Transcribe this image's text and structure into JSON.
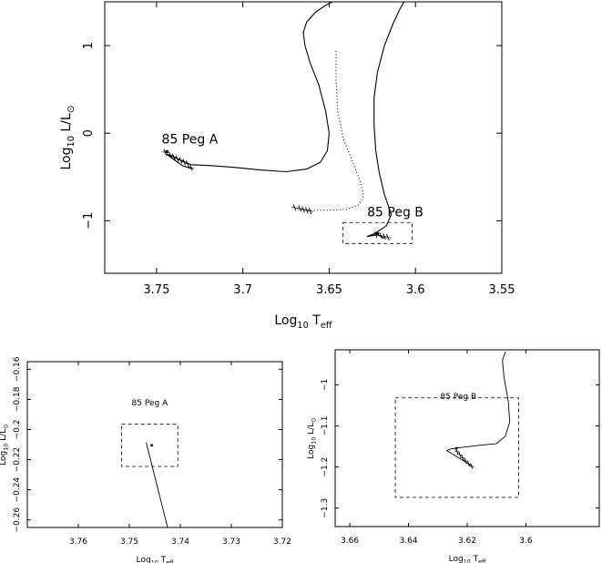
{
  "chart_data": [
    {
      "type": "line",
      "title": "",
      "xlabel_main": "Log",
      "xlabel_sub": "10",
      "xlabel_tail": " T",
      "xlabel_tail_sub": "eff",
      "ylabel_main": "Log",
      "ylabel_sub": "10",
      "ylabel_tail": " L/L",
      "ylabel_sun": "⊙",
      "x_axis": "reversed",
      "xlim": [
        3.78,
        3.55
      ],
      "ylim": [
        -1.6,
        1.5
      ],
      "xticks": [
        3.75,
        3.7,
        3.65,
        3.6,
        3.55
      ],
      "xtick_labels": [
        "3.75",
        "3.7",
        "3.65",
        "3.6",
        "3.55"
      ],
      "yticks": [
        1,
        0,
        -1
      ],
      "ytick_labels": [
        "1",
        "0",
        "−1"
      ],
      "annotations": [
        {
          "text": "85 Peg A",
          "x": 3.747,
          "y": -0.12
        },
        {
          "text": "85 Peg B",
          "x": 3.628,
          "y": -0.95
        }
      ],
      "series": [
        {
          "style": "solid",
          "x": [
            3.729,
            3.735,
            3.74,
            3.744,
            3.73,
            3.718,
            3.705,
            3.69,
            3.675,
            3.663,
            3.655,
            3.651,
            3.65,
            3.652,
            3.656,
            3.661,
            3.664,
            3.665,
            3.663,
            3.658,
            3.652,
            3.646
          ],
          "y": [
            -0.41,
            -0.37,
            -0.3,
            -0.24,
            -0.36,
            -0.37,
            -0.39,
            -0.42,
            -0.44,
            -0.41,
            -0.33,
            -0.2,
            0.0,
            0.25,
            0.55,
            0.8,
            1.0,
            1.15,
            1.27,
            1.38,
            1.46,
            1.52
          ]
        },
        {
          "style": "dotted",
          "x": [
            3.668,
            3.66,
            3.65,
            3.64,
            3.633,
            3.63,
            3.632,
            3.637,
            3.642,
            3.645,
            3.646,
            3.646
          ],
          "y": [
            -0.87,
            -0.88,
            -0.88,
            -0.87,
            -0.82,
            -0.72,
            -0.55,
            -0.3,
            -0.05,
            0.25,
            0.6,
            0.95
          ]
        },
        {
          "style": "solid",
          "x": [
            3.618,
            3.622,
            3.628,
            3.624,
            3.617,
            3.614,
            3.618,
            3.621,
            3.623,
            3.624,
            3.624,
            3.622,
            3.618,
            3.613,
            3.609,
            3.606
          ],
          "y": [
            -1.2,
            -1.16,
            -1.18,
            -1.15,
            -1.06,
            -0.93,
            -0.7,
            -0.45,
            -0.2,
            0.1,
            0.4,
            0.7,
            1.0,
            1.25,
            1.42,
            1.52
          ]
        }
      ],
      "hatch_clusters": [
        {
          "x": [
            3.745,
            3.742,
            3.74,
            3.738,
            3.736,
            3.734,
            3.732,
            3.73
          ],
          "y": [
            -0.22,
            -0.25,
            -0.27,
            -0.29,
            -0.31,
            -0.33,
            -0.35,
            -0.39
          ]
        },
        {
          "x": [
            3.67,
            3.667,
            3.665,
            3.663,
            3.661
          ],
          "y": [
            -0.85,
            -0.86,
            -0.87,
            -0.88,
            -0.89
          ]
        },
        {
          "x": [
            3.623,
            3.62,
            3.618,
            3.616
          ],
          "y": [
            -1.16,
            -1.17,
            -1.18,
            -1.19
          ]
        }
      ],
      "star_points": [
        {
          "name": "85 Peg A",
          "x": 3.744,
          "y": -0.21
        },
        {
          "name": "85 Peg B",
          "x": 3.622,
          "y": -1.15
        }
      ],
      "boxes": [
        {
          "style": "dashed",
          "x": [
            3.642,
            3.602
          ],
          "y": [
            -1.26,
            -1.02
          ]
        }
      ]
    },
    {
      "type": "line",
      "title": "",
      "xlabel_main": "Log",
      "xlabel_sub": "10",
      "xlabel_tail": " T",
      "xlabel_tail_sub": "eff",
      "ylabel_main": "Log",
      "ylabel_sub": "10",
      "ylabel_tail": " L/L",
      "ylabel_sun": "⊙",
      "x_axis": "reversed",
      "xlim": [
        3.77,
        3.72
      ],
      "ylim": [
        -0.265,
        -0.155
      ],
      "xticks": [
        3.76,
        3.75,
        3.74,
        3.73,
        3.72
      ],
      "xtick_labels": [
        "3.76",
        "3.75",
        "3.74",
        "3.73",
        "3.72"
      ],
      "yticks": [
        -0.16,
        -0.18,
        -0.2,
        -0.22,
        -0.24,
        -0.26
      ],
      "ytick_labels": [
        "−0.16",
        "−0.18",
        "−0.2",
        "−0.22",
        "−0.24",
        "−0.26"
      ],
      "annotations": [
        {
          "text": "85 Peg A",
          "x": 3.746,
          "y": -0.184
        }
      ],
      "series": [
        {
          "style": "solid",
          "x": [
            3.7467,
            3.7425
          ],
          "y": [
            -0.2085,
            -0.265
          ]
        }
      ],
      "star_points": [
        {
          "name": "85 Peg A",
          "x": 3.7456,
          "y": -0.2105
        }
      ],
      "boxes": [
        {
          "style": "dashed",
          "x": [
            3.7515,
            3.7405
          ],
          "y": [
            -0.2245,
            -0.1965
          ]
        }
      ]
    },
    {
      "type": "line",
      "title": "",
      "xlabel_main": "Log",
      "xlabel_sub": "10",
      "xlabel_tail": " T",
      "xlabel_tail_sub": "eff",
      "ylabel_main": "Log",
      "ylabel_sub": "10",
      "ylabel_tail": " L/L",
      "ylabel_sun": "⊙",
      "x_axis": "reversed",
      "xlim": [
        3.665,
        3.575
      ],
      "ylim": [
        -1.345,
        -0.915
      ],
      "xticks": [
        3.66,
        3.64,
        3.62,
        3.6
      ],
      "xtick_labels": [
        "3.66",
        "3.64",
        "3.62",
        "3.6"
      ],
      "yticks": [
        -1,
        -1.1,
        -1.2,
        -1.3
      ],
      "ytick_labels": [
        "−1",
        "−1.1",
        "−1.2",
        "−1.3"
      ],
      "annotations": [
        {
          "text": "85 Peg B",
          "x": 3.623,
          "y": -1.035
        }
      ],
      "series": [
        {
          "style": "solid",
          "x": [
            3.6185,
            3.621,
            3.624,
            3.627,
            3.6255,
            3.6215,
            3.6165,
            3.61,
            3.607,
            3.6055,
            3.606,
            3.6075,
            3.608,
            3.607
          ],
          "y": [
            -1.199,
            -1.186,
            -1.173,
            -1.16,
            -1.156,
            -1.152,
            -1.148,
            -1.143,
            -1.125,
            -1.09,
            -1.04,
            -0.98,
            -0.94,
            -0.92
          ]
        }
      ],
      "hatch_clusters": [
        {
          "x": [
            3.6235,
            3.6225,
            3.6215,
            3.6205,
            3.6195,
            3.6185
          ],
          "y": [
            -1.162,
            -1.17,
            -1.178,
            -1.185,
            -1.192,
            -1.198
          ]
        }
      ],
      "star_points": [
        {
          "name": "85 Peg B",
          "x": 3.6237,
          "y": -1.1545
        }
      ],
      "boxes": [
        {
          "style": "dashed",
          "x": [
            3.6445,
            3.6025
          ],
          "y": [
            -1.274,
            -1.032
          ]
        }
      ]
    }
  ]
}
